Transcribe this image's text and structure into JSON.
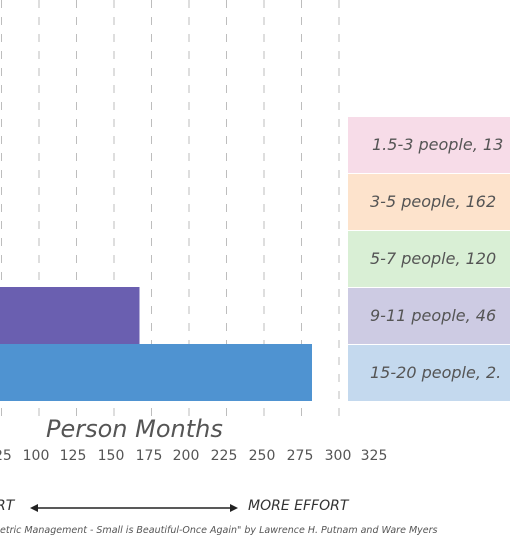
{
  "chart_data": {
    "type": "bar",
    "orientation": "horizontal",
    "categories": [
      "1.5-3 people",
      "3-5 people",
      "5-7 people",
      "9-11 people",
      "15-20 people"
    ],
    "values": [
      null,
      null,
      null,
      167,
      282
    ],
    "colors": [
      "#f7dce8",
      "#fde3cc",
      "#d9efd5",
      "#cdcbe3",
      "#c4d9ee"
    ],
    "bar_colors": [
      "#f7dce8",
      "#fde3cc",
      "#d9efd5",
      "#6a5fb0",
      "#4f93d1"
    ],
    "legend": [
      "1.5-3 people, 13",
      "3-5 people, 162",
      "5-7 people, 120",
      "9-11 people, 46",
      "15-20 people, 2."
    ],
    "xlabel": "Person Months",
    "xticks": [
      "25",
      "100",
      "125",
      "150",
      "175",
      "200",
      "225",
      "250",
      "275",
      "300",
      "325"
    ],
    "xlim": [
      75,
      325
    ],
    "grid": true,
    "legend_position": "right"
  },
  "effort": {
    "less": "RT",
    "more": "MORE EFFORT"
  },
  "source": "etric Management - Small is Beautiful-Once Again\" by Lawrence H. Putnam and Ware Myers"
}
